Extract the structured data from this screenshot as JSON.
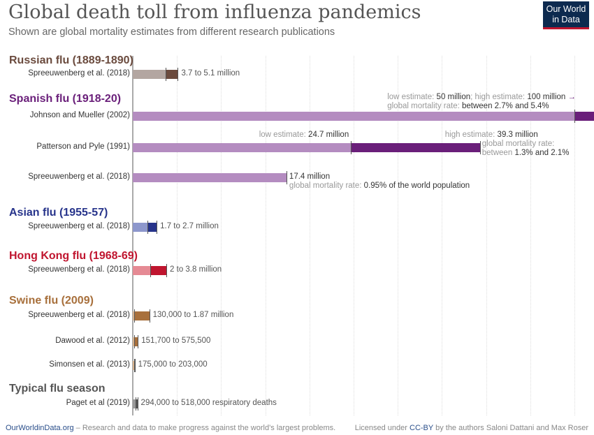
{
  "header": {
    "title": "Global death toll from influenza pandemics",
    "subtitle": "Shown are global mortality estimates from different research publications",
    "logo": "Our World in Data"
  },
  "footer": {
    "site": "OurWorldinData.org",
    "tagline": " – Research and data to make progress against the world’s largest problems.",
    "license_pre": "Licensed under ",
    "license": "CC-BY",
    "license_post": " by the authors Saloni Dattani and Max Roser"
  },
  "chart_data": {
    "type": "bar",
    "unit": "million deaths",
    "xlim": [
      0,
      52
    ],
    "grid": true,
    "grid_step": 5,
    "groups": [
      {
        "name": "Russian flu (1889-1890)",
        "color": "#6b4b3e",
        "light": "#b3a6a1",
        "rows": [
          {
            "source": "Spreeuwenberg et al. (2018)",
            "low": 3.7,
            "high": 5.1,
            "label": "3.7 to 5.1 million"
          }
        ]
      },
      {
        "name": "Spanish flu (1918-20)",
        "color": "#6a1f7a",
        "light": "#b48cc0",
        "rows": [
          {
            "source": "Johnson and Mueller (2002)",
            "low": 50,
            "high": 100,
            "label_low_k": "low estimate: ",
            "label_low_v": "50 million",
            "label_high_k": "; high estimate: ",
            "label_high_v": "100 million",
            "arrow": "→",
            "rate_k": "global mortality rate: ",
            "rate_v": "between 2.7% and 5.4%"
          },
          {
            "source": "Patterson and Pyle (1991)",
            "low": 24.7,
            "high": 39.3,
            "label_low_k": "low estimate: ",
            "label_low_v": "24.7 million",
            "label_high_k": "high estimate: ",
            "label_high_v": "39.3 million",
            "rate_k": "global mortality rate:",
            "rate_k2": "between ",
            "rate_v": "1.3% and 2.1%"
          },
          {
            "source": "Spreeuwenberg et al. (2018)",
            "low": 17.4,
            "high": 17.4,
            "label": "17.4 million",
            "rate_k": "global mortality rate: ",
            "rate_v": "0.95% of the world population"
          }
        ]
      },
      {
        "name": "Asian flu (1955-57)",
        "color": "#27348b",
        "light": "#8d97cc",
        "rows": [
          {
            "source": "Spreeuwenberg et al. (2018)",
            "low": 1.7,
            "high": 2.7,
            "label": "1.7 to 2.7 million"
          }
        ]
      },
      {
        "name": "Hong Kong flu (1968-69)",
        "color": "#c0152f",
        "light": "#e58a94",
        "rows": [
          {
            "source": "Spreeuwenberg et al. (2018)",
            "low": 2,
            "high": 3.8,
            "label": "2 to 3.8 million"
          }
        ]
      },
      {
        "name": "Swine flu (2009)",
        "color": "#a8703c",
        "light": "#d9b48f",
        "rows": [
          {
            "source": "Spreeuwenberg et al. (2018)",
            "low": 0.13,
            "high": 1.87,
            "label": "130,000 to 1.87 million"
          },
          {
            "source": "Dawood et al. (2012)",
            "low": 0.1517,
            "high": 0.5755,
            "label": "151,700 to 575,500"
          },
          {
            "source": "Simonsen et al. (2013)",
            "low": 0.175,
            "high": 0.203,
            "label": "175,000 to 203,000"
          }
        ]
      },
      {
        "name": "Typical flu season",
        "color": "#555555",
        "light": "#999999",
        "rows": [
          {
            "source": "Paget et al (2019)",
            "low": 0.294,
            "high": 0.518,
            "label": "294,000 to 518,000 respiratory deaths"
          }
        ]
      }
    ]
  }
}
